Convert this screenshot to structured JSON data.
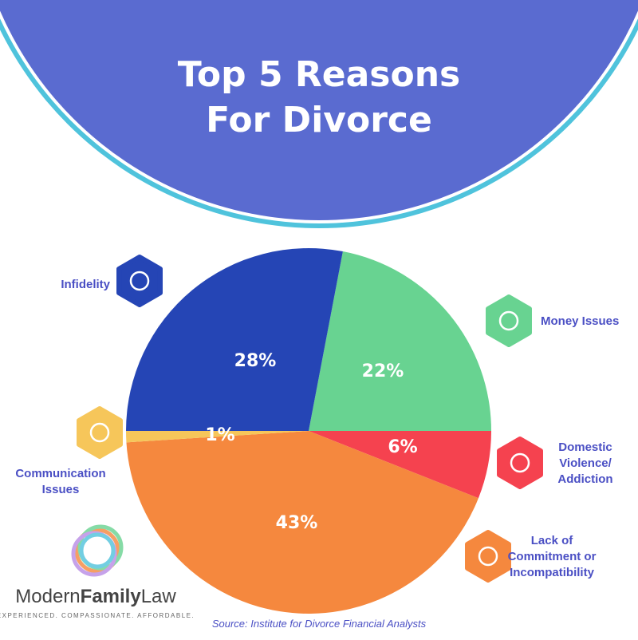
{
  "chart_data": {
    "type": "pie",
    "title": [
      "Top 5 Reasons",
      "For Divorce"
    ],
    "categories": [
      "Money Issues",
      "Domestic Violence/ Addiction",
      "Lack of Commitment or Incompatibility",
      "Communication Issues",
      "Infidelity"
    ],
    "values": [
      22,
      6,
      43,
      1,
      28
    ],
    "value_labels": [
      "22%",
      "6%",
      "43%",
      "1%",
      "28%"
    ],
    "colors": [
      "#68d391",
      "#f5424f",
      "#f5883e",
      "#f6c65a",
      "#2545b5"
    ],
    "source": "Source: Institute for Divorce Financial Analysts"
  },
  "logo": {
    "name": [
      "Modern",
      "Family",
      "Law"
    ],
    "tagline": "EXPERIENCED. COMPASSIONATE. AFFORDABLE."
  }
}
